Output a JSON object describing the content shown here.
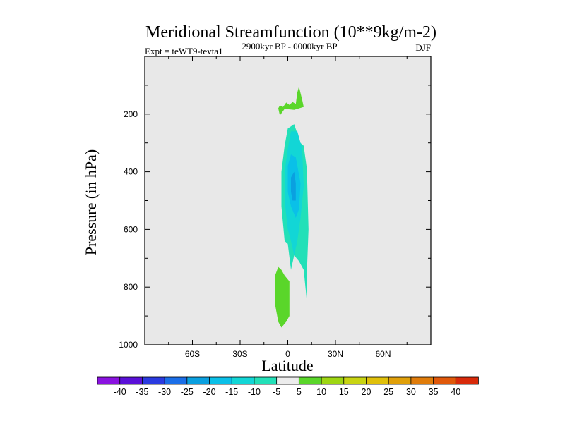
{
  "chart_data": {
    "type": "contour",
    "title": "Meridional Streamfunction (10**9kg/m-2)",
    "left_subtitle": "Expt = teWT9-tevta1",
    "center_subtitle": "2900kyr BP - 0000kyr BP",
    "right_subtitle": "DJF",
    "xlabel": "Latitude",
    "ylabel": "Pressure (in hPa)",
    "xlim": [
      -90,
      90
    ],
    "ylim": [
      1000,
      0
    ],
    "x_ticks": [
      {
        "value": -60,
        "label": "60S"
      },
      {
        "value": -30,
        "label": "30S"
      },
      {
        "value": 0,
        "label": "0"
      },
      {
        "value": 30,
        "label": "30N"
      },
      {
        "value": 60,
        "label": "60N"
      }
    ],
    "y_ticks": [
      {
        "value": 200,
        "label": "200"
      },
      {
        "value": 400,
        "label": "400"
      },
      {
        "value": 600,
        "label": "600"
      },
      {
        "value": 800,
        "label": "800"
      },
      {
        "value": 1000,
        "label": "1000"
      }
    ],
    "y_minor_ticks": [
      100,
      300,
      500,
      700,
      900
    ],
    "background_color": "#e8e8e8",
    "colorbar": {
      "labels": [
        "-40",
        "-35",
        "-30",
        "-25",
        "-20",
        "-15",
        "-10",
        "-5",
        "5",
        "10",
        "15",
        "20",
        "25",
        "30",
        "35",
        "40"
      ],
      "colors": [
        "#8a12e0",
        "#5a10d8",
        "#2a3ae0",
        "#1a6ee8",
        "#0aa0e0",
        "#0ac0e8",
        "#12d6d6",
        "#22e0b8",
        "#ececec",
        "#5ad62a",
        "#9ed612",
        "#c8d412",
        "#e0c00a",
        "#e0a00a",
        "#e07c0a",
        "#e0580a",
        "#d82a0a"
      ]
    },
    "regions": [
      {
        "name": "upper-tropical-positive-cell",
        "level": 5,
        "color": "#5ad62a",
        "points": [
          [
            -6,
            180
          ],
          [
            -5,
            170
          ],
          [
            -3,
            175
          ],
          [
            -1,
            160
          ],
          [
            1,
            168
          ],
          [
            3,
            158
          ],
          [
            5,
            165
          ],
          [
            6,
            125
          ],
          [
            7,
            105
          ],
          [
            9,
            150
          ],
          [
            10,
            175
          ],
          [
            4,
            185
          ],
          [
            -2,
            182
          ],
          [
            -5,
            205
          ]
        ]
      },
      {
        "name": "tropical-negative-cell-outer",
        "level": -5,
        "color": "#22e0b8",
        "points": [
          [
            -2,
            310
          ],
          [
            0,
            250
          ],
          [
            4,
            235
          ],
          [
            8,
            300
          ],
          [
            10,
            310
          ],
          [
            12,
            390
          ],
          [
            13,
            600
          ],
          [
            12,
            750
          ],
          [
            12,
            850
          ],
          [
            10,
            740
          ],
          [
            7,
            710
          ],
          [
            4,
            690
          ],
          [
            2,
            740
          ],
          [
            0,
            650
          ],
          [
            -2,
            640
          ],
          [
            -4,
            520
          ],
          [
            -4,
            400
          ]
        ]
      },
      {
        "name": "tropical-negative-cell-middle",
        "level": -10,
        "color": "#12d6d6",
        "points": [
          [
            0,
            320
          ],
          [
            2,
            260
          ],
          [
            6,
            260
          ],
          [
            9,
            320
          ],
          [
            10,
            450
          ],
          [
            8,
            560
          ],
          [
            6,
            640
          ],
          [
            4,
            690
          ],
          [
            2,
            640
          ],
          [
            0,
            600
          ],
          [
            -2,
            500
          ],
          [
            -2,
            400
          ]
        ]
      },
      {
        "name": "tropical-negative-cell-inner",
        "level": -15,
        "color": "#0ac0e8",
        "points": [
          [
            0,
            380
          ],
          [
            2,
            340
          ],
          [
            5,
            350
          ],
          [
            8,
            440
          ],
          [
            7,
            530
          ],
          [
            5,
            560
          ],
          [
            2,
            520
          ],
          [
            0,
            470
          ]
        ]
      },
      {
        "name": "tropical-negative-cell-core",
        "level": -20,
        "color": "#0aa0e0",
        "points": [
          [
            2,
            420
          ],
          [
            4,
            400
          ],
          [
            5,
            440
          ],
          [
            5,
            500
          ],
          [
            3,
            500
          ],
          [
            2,
            470
          ]
        ]
      },
      {
        "name": "lower-tropical-positive-cell",
        "level": 5,
        "color": "#5ad62a",
        "points": [
          [
            -8,
            760
          ],
          [
            -6,
            730
          ],
          [
            -4,
            740
          ],
          [
            -2,
            760
          ],
          [
            1,
            780
          ],
          [
            1,
            900
          ],
          [
            -1,
            920
          ],
          [
            -4,
            940
          ],
          [
            -6,
            920
          ],
          [
            -8,
            860
          ]
        ]
      }
    ]
  }
}
